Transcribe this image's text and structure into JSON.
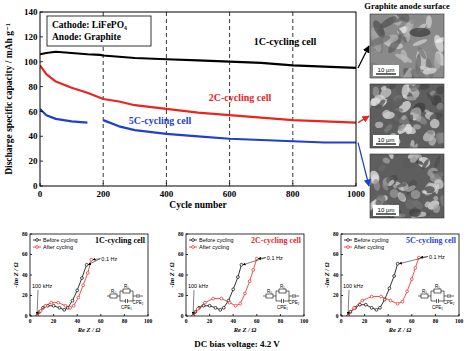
{
  "chart_data": [
    {
      "type": "line",
      "annotations": [
        "Cathode: LiFePO₄",
        "Anode: Graphite"
      ],
      "xlabel": "Cycle number",
      "ylabel": "Discharge specific capacity / mAh g⁻¹",
      "x": [
        0,
        20,
        50,
        100,
        150,
        190,
        200,
        250,
        300,
        400,
        500,
        600,
        700,
        800,
        900,
        1000
      ],
      "xlim": [
        0,
        1000
      ],
      "xticks": [
        0,
        200,
        400,
        600,
        800,
        1000
      ],
      "ylim": [
        0,
        140
      ],
      "yticks": [
        0,
        20,
        40,
        60,
        80,
        100,
        120,
        140
      ],
      "grid": true,
      "series": [
        {
          "name": "1C-cycling cell",
          "color": "#000000",
          "values": [
            106,
            107,
            108,
            107,
            106,
            105.5,
            105,
            104,
            103,
            102,
            101,
            100,
            99,
            97,
            96,
            95
          ]
        },
        {
          "name": "2C-cycling cell",
          "color": "#e8251f",
          "values": [
            97,
            90,
            84,
            79,
            75,
            71,
            70,
            68,
            65,
            62,
            59,
            57,
            55,
            53,
            52,
            51
          ]
        },
        {
          "name": "5C-cycling cell",
          "color": "#1f3fd0",
          "values": [
            62,
            57,
            54,
            52,
            51,
            null,
            53,
            48,
            45,
            42,
            40,
            38,
            37,
            36,
            35,
            35
          ]
        }
      ]
    },
    {
      "type": "line",
      "title": "1C-cycling cell",
      "color": "#000000",
      "xlabel": "Re Z / Ω",
      "ylabel": "-Im Z / Ω",
      "xlim": [
        0,
        100
      ],
      "xticks": [
        0,
        20,
        40,
        60,
        80,
        100
      ],
      "ylim": [
        0,
        80
      ],
      "yticks": [
        0,
        20,
        40,
        60,
        80
      ],
      "legend": "top-left",
      "annotations": [
        "100 kHz",
        "0.1 Hz"
      ],
      "circuit": [
        "R₀",
        "R₁",
        "CPE₁",
        "CPE₂"
      ],
      "series": [
        {
          "name": "Before cycling",
          "color": "#000000",
          "marker": "circle",
          "x": [
            6,
            8,
            11,
            15,
            20,
            25,
            29,
            32,
            36,
            40,
            44,
            48
          ],
          "values": [
            0,
            4,
            8,
            10,
            10,
            8,
            6,
            8,
            15,
            25,
            37,
            50
          ]
        },
        {
          "name": "After cycling",
          "color": "#e8251f",
          "marker": "circle",
          "x": [
            6,
            9,
            13,
            18,
            24,
            30,
            34,
            37,
            41,
            45,
            49,
            52
          ],
          "values": [
            0,
            5,
            10,
            13,
            13,
            10,
            8,
            10,
            18,
            30,
            42,
            55
          ]
        }
      ]
    },
    {
      "type": "line",
      "title": "2C-cycling cell",
      "color": "#e8251f",
      "xlabel": "Re Z / Ω",
      "ylabel": "-Im Z / Ω",
      "xlim": [
        0,
        100
      ],
      "xticks": [
        0,
        20,
        40,
        60,
        80,
        100
      ],
      "ylim": [
        0,
        80
      ],
      "yticks": [
        0,
        20,
        40,
        60,
        80
      ],
      "legend": "top-left",
      "annotations": [
        "100 kHz",
        "0.1 Hz"
      ],
      "circuit": [
        "R₀",
        "R₁",
        "CPE₁",
        "CPE₂"
      ],
      "series": [
        {
          "name": "Before cycling",
          "color": "#000000",
          "marker": "circle",
          "x": [
            6,
            8,
            11,
            15,
            20,
            25,
            29,
            32,
            36,
            40,
            44,
            47
          ],
          "values": [
            0,
            4,
            8,
            10,
            10,
            8,
            6,
            8,
            15,
            26,
            38,
            50
          ]
        },
        {
          "name": "After cycling",
          "color": "#e8251f",
          "marker": "circle",
          "x": [
            6,
            10,
            16,
            23,
            30,
            37,
            42,
            46,
            50,
            54,
            57,
            60
          ],
          "values": [
            0,
            7,
            13,
            17,
            17,
            13,
            10,
            12,
            22,
            34,
            45,
            56
          ]
        }
      ]
    },
    {
      "type": "line",
      "title": "5C-cycling cell",
      "color": "#1f3fd0",
      "xlabel": "Re Z / Ω",
      "ylabel": "-Im Z / Ω",
      "xlim": [
        0,
        100
      ],
      "xticks": [
        0,
        20,
        40,
        60,
        80,
        100
      ],
      "ylim": [
        0,
        80
      ],
      "yticks": [
        0,
        20,
        40,
        60,
        80
      ],
      "legend": "top-left",
      "annotations": [
        "100 kHz",
        "0.1 Hz"
      ],
      "circuit": [
        "R₀",
        "R₁",
        "CPE₁",
        "CPE₂"
      ],
      "series": [
        {
          "name": "Before cycling",
          "color": "#000000",
          "marker": "circle",
          "x": [
            6,
            8,
            12,
            16,
            21,
            26,
            30,
            33,
            37,
            41,
            45,
            48
          ],
          "values": [
            0,
            4,
            8,
            11,
            11,
            8,
            6,
            8,
            16,
            27,
            39,
            51
          ]
        },
        {
          "name": "After cycling",
          "color": "#e8251f",
          "marker": "circle",
          "x": [
            6,
            11,
            18,
            26,
            34,
            42,
            48,
            52,
            56,
            60,
            63,
            66
          ],
          "values": [
            0,
            8,
            15,
            19,
            19,
            15,
            12,
            14,
            24,
            36,
            47,
            57
          ]
        }
      ]
    }
  ],
  "image_panel": {
    "title": "Graphite anode surface",
    "scale_bars": [
      "10 μm",
      "10 μm",
      "10 μm"
    ]
  },
  "footer": "DC bias voltage: 4.2 V"
}
